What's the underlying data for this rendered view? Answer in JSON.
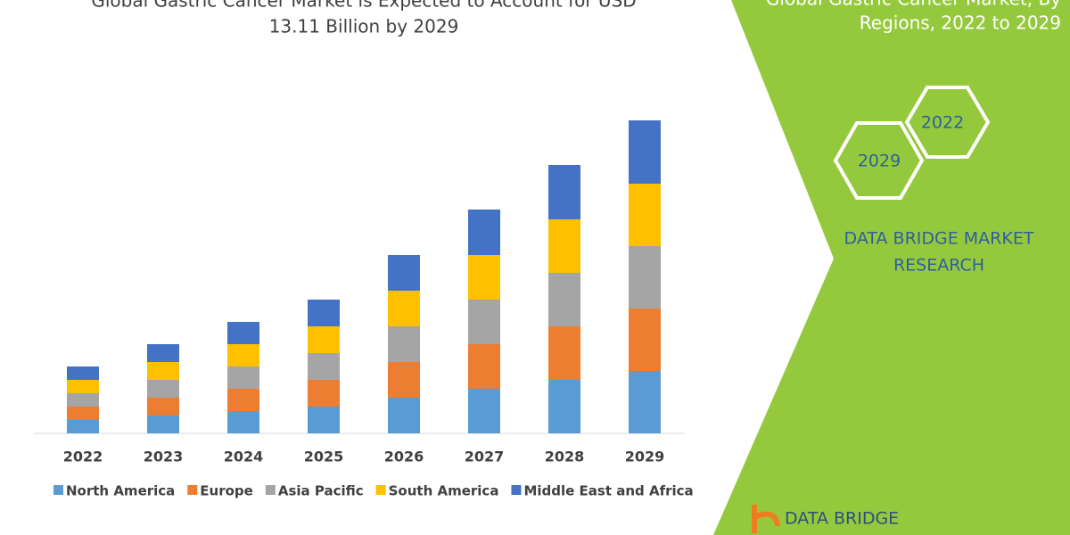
{
  "chart_data": {
    "type": "bar",
    "stacked": true,
    "title": [
      "Global Gastric Cancer Market is Expected to Account for USD",
      "13.11 Billion by 2029"
    ],
    "categories": [
      "2022",
      "2023",
      "2024",
      "2025",
      "2026",
      "2027",
      "2028",
      "2029"
    ],
    "series": [
      {
        "name": "North America",
        "color": "#5b9bd5",
        "values": [
          15,
          20,
          25,
          30,
          40,
          50,
          60,
          70
        ]
      },
      {
        "name": "Europe",
        "color": "#ed7d31",
        "values": [
          15,
          20,
          25,
          30,
          40,
          50,
          60,
          70
        ]
      },
      {
        "name": "Asia Pacific",
        "color": "#a5a5a5",
        "values": [
          15,
          20,
          25,
          30,
          40,
          50,
          60,
          70
        ]
      },
      {
        "name": "South America",
        "color": "#ffc000",
        "values": [
          15,
          20,
          25,
          30,
          40,
          50,
          60,
          70
        ]
      },
      {
        "name": "Middle East and Africa",
        "color": "#4472c4",
        "values": [
          15,
          20,
          25,
          30,
          40,
          51,
          61,
          71
        ]
      }
    ],
    "ylim": [
      0,
      376
    ]
  },
  "panel": {
    "title": [
      "Global Gastric Cancer Market, By",
      "Regions, 2022 to 2029"
    ],
    "hexagons": [
      "2022",
      "2029"
    ],
    "brand": [
      "DATA BRIDGE MARKET",
      "RESEARCH"
    ],
    "logo": "DATA BRIDGE"
  }
}
